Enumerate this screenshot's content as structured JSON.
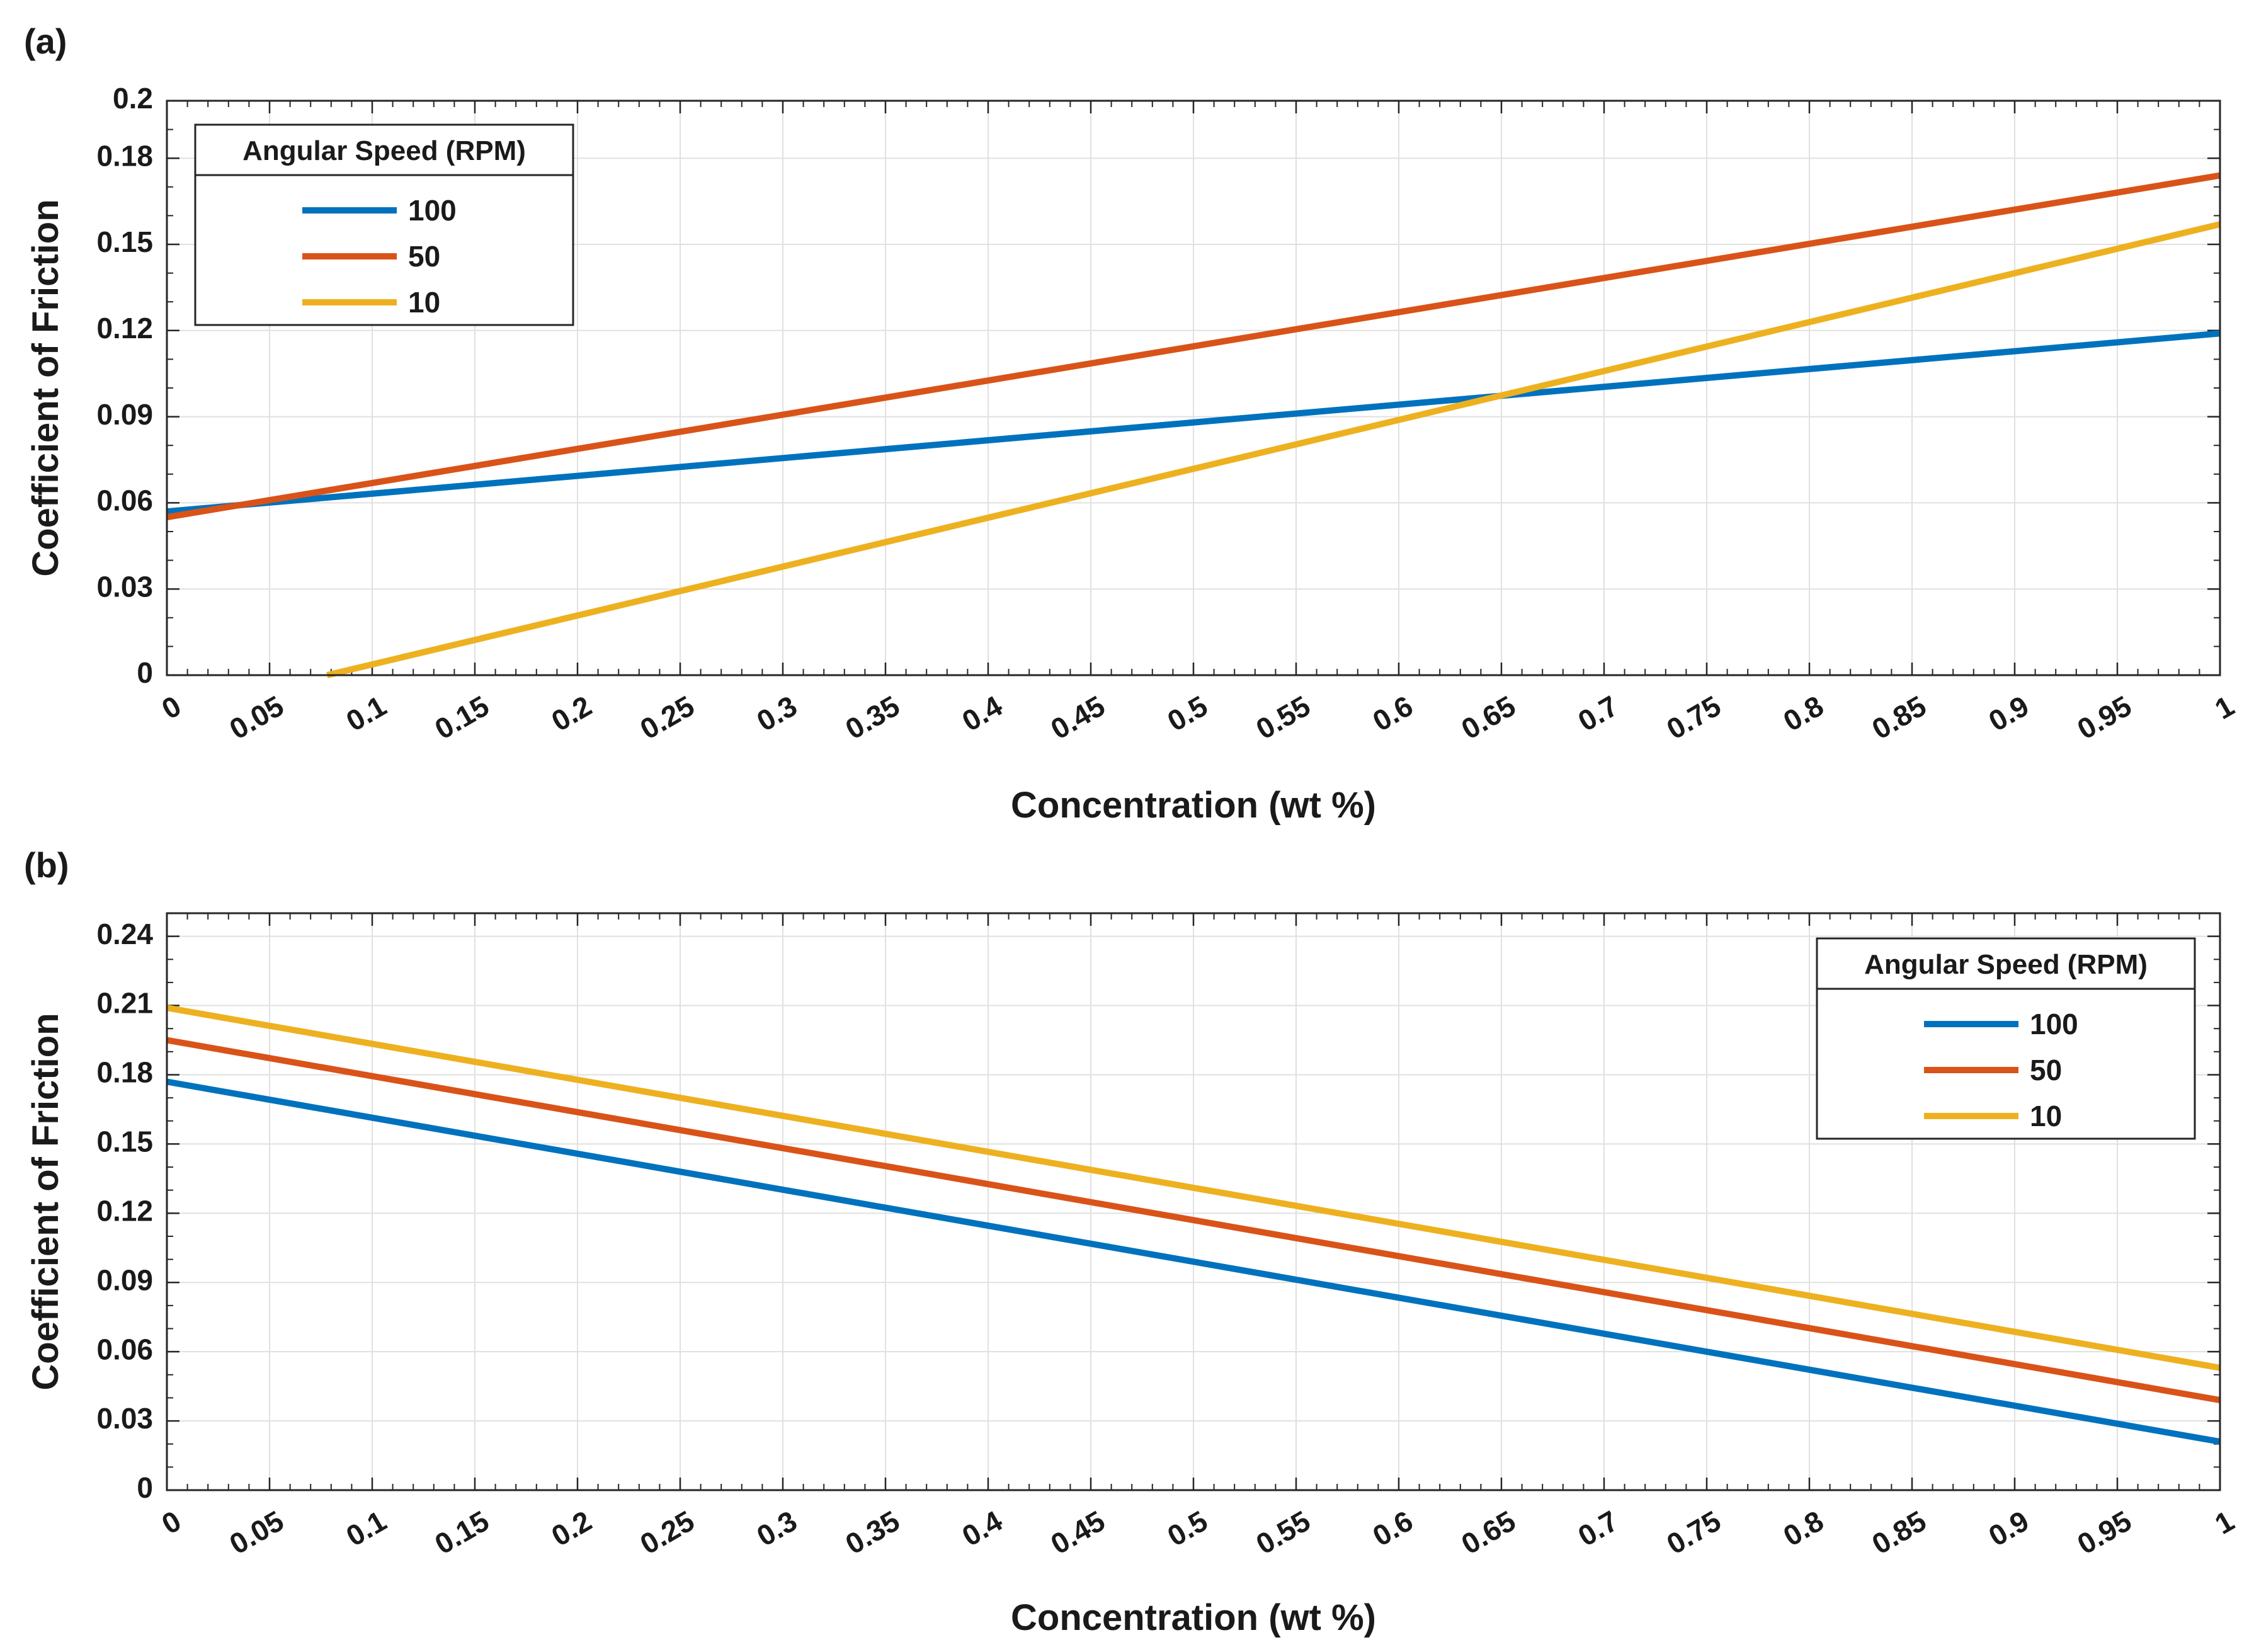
{
  "chart_data": [
    {
      "type": "line",
      "panel_label": "(a)",
      "title": "",
      "xlabel": "Concentration (wt %)",
      "ylabel": "Coefficient of Friction",
      "xlim": [
        0,
        1
      ],
      "ylim": [
        0,
        0.2
      ],
      "xticks": [
        0,
        0.05,
        0.1,
        0.15,
        0.2,
        0.25,
        0.3,
        0.35,
        0.4,
        0.45,
        0.5,
        0.55,
        0.6,
        0.65,
        0.7,
        0.75,
        0.8,
        0.85,
        0.9,
        0.95,
        1
      ],
      "xtick_labels": [
        "0",
        "0.05",
        "0.1",
        "0.15",
        "0.2",
        "0.25",
        "0.3",
        "0.35",
        "0.4",
        "0.45",
        "0.5",
        "0.55",
        "0.6",
        "0.65",
        "0.7",
        "0.75",
        "0.8",
        "0.85",
        "0.9",
        "0.95",
        "1"
      ],
      "yticks": [
        0,
        0.03,
        0.06,
        0.09,
        0.12,
        0.15,
        0.18,
        0.2
      ],
      "ytick_labels": [
        "0",
        "0.03",
        "0.06",
        "0.09",
        "0.12",
        "0.15",
        "0.18",
        "0.2"
      ],
      "grid": true,
      "legend": {
        "title": "Angular Speed (RPM)",
        "position": "top-left"
      },
      "series": [
        {
          "name": "100",
          "color": "#0072BD",
          "x": [
            0,
            1
          ],
          "y": [
            0.057,
            0.119
          ]
        },
        {
          "name": "50",
          "color": "#D95319",
          "x": [
            0,
            1
          ],
          "y": [
            0.055,
            0.174
          ]
        },
        {
          "name": "10",
          "color": "#EDB120",
          "x": [
            0.078,
            1
          ],
          "y": [
            0.0,
            0.157
          ]
        }
      ]
    },
    {
      "type": "line",
      "panel_label": "(b)",
      "title": "",
      "xlabel": "Concentration (wt %)",
      "ylabel": "Coefficient of Friction",
      "xlim": [
        0,
        1
      ],
      "ylim": [
        0,
        0.25
      ],
      "xticks": [
        0,
        0.05,
        0.1,
        0.15,
        0.2,
        0.25,
        0.3,
        0.35,
        0.4,
        0.45,
        0.5,
        0.55,
        0.6,
        0.65,
        0.7,
        0.75,
        0.8,
        0.85,
        0.9,
        0.95,
        1
      ],
      "xtick_labels": [
        "0",
        "0.05",
        "0.1",
        "0.15",
        "0.2",
        "0.25",
        "0.3",
        "0.35",
        "0.4",
        "0.45",
        "0.5",
        "0.55",
        "0.6",
        "0.65",
        "0.7",
        "0.75",
        "0.8",
        "0.85",
        "0.9",
        "0.95",
        "1"
      ],
      "yticks": [
        0,
        0.03,
        0.06,
        0.09,
        0.12,
        0.15,
        0.18,
        0.21,
        0.24
      ],
      "ytick_labels": [
        "0",
        "0.03",
        "0.06",
        "0.09",
        "0.12",
        "0.15",
        "0.18",
        "0.21",
        "0.24"
      ],
      "grid": true,
      "legend": {
        "title": "Angular Speed (RPM)",
        "position": "top-right"
      },
      "series": [
        {
          "name": "100",
          "color": "#0072BD",
          "x": [
            0,
            1
          ],
          "y": [
            0.177,
            0.021
          ]
        },
        {
          "name": "50",
          "color": "#D95319",
          "x": [
            0,
            1
          ],
          "y": [
            0.195,
            0.039
          ]
        },
        {
          "name": "10",
          "color": "#EDB120",
          "x": [
            0,
            1
          ],
          "y": [
            0.209,
            0.053
          ]
        }
      ]
    }
  ]
}
